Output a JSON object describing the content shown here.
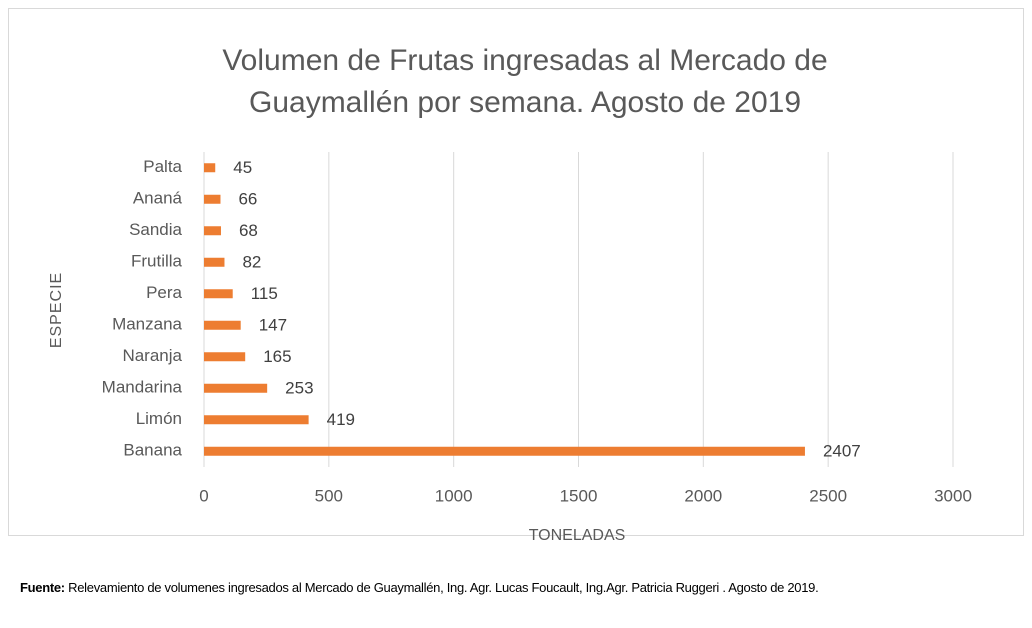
{
  "chart_data": {
    "type": "hbar",
    "title": "Volumen de Frutas ingresadas al Mercado de Guaymallén por semana. Agosto de 2019",
    "x_label": "TONELADAS",
    "y_label": "ESPECIE",
    "categories": [
      "Palta",
      "Ananá",
      "Sandia",
      "Frutilla",
      "Pera",
      "Manzana",
      "Naranja",
      "Mandarina",
      "Limón",
      "Banana"
    ],
    "values": [
      45,
      66,
      68,
      82,
      115,
      147,
      165,
      253,
      419,
      2407
    ],
    "color": "#ed7d31",
    "xlim": [
      0,
      3000
    ],
    "xticks": [
      0,
      500,
      1000,
      1500,
      2000,
      2500,
      3000
    ],
    "grid": true,
    "source_label": "Fuente:",
    "source_text": "Relevamiento de volumenes ingresados al Mercado de Guaymallén, Ing. Agr. Lucas Foucault, Ing.Agr. Patricia Ruggeri . Agosto de 2019."
  }
}
